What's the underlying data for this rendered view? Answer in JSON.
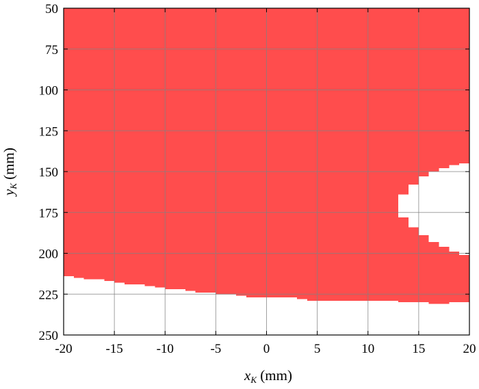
{
  "chart_data": {
    "type": "heatmap",
    "xlim": [
      -20,
      20
    ],
    "ylim": [
      50,
      250
    ],
    "y_direction": "reversed",
    "grid": true,
    "x_ticks": [
      -20,
      -15,
      -10,
      -5,
      0,
      5,
      10,
      15,
      20
    ],
    "y_ticks": [
      50,
      75,
      100,
      125,
      150,
      175,
      200,
      225,
      250
    ],
    "x_tick_labels": [
      "-20",
      "-15",
      "-10",
      "-5",
      "0",
      "5",
      "10",
      "15",
      "20"
    ],
    "y_tick_labels": [
      "50",
      "75",
      "100",
      "125",
      "150",
      "175",
      "200",
      "225",
      "250"
    ],
    "xlabel": {
      "var": "x",
      "sub": "K",
      "unit": " (mm)"
    },
    "ylabel": {
      "var": "y",
      "sub": "K",
      "unit": " (mm)"
    },
    "colors": {
      "region": "#ff4d4d",
      "background": "#ffffff",
      "grid": "#808080"
    },
    "region_lower_boundary": [
      [
        -20,
        214
      ],
      [
        -19,
        215
      ],
      [
        -18,
        216
      ],
      [
        -16,
        217
      ],
      [
        -15,
        218
      ],
      [
        -14,
        219
      ],
      [
        -12,
        220
      ],
      [
        -11,
        221
      ],
      [
        -10,
        222
      ],
      [
        -8,
        223
      ],
      [
        -7,
        224
      ],
      [
        -5,
        225
      ],
      [
        -3,
        226
      ],
      [
        -2,
        227
      ],
      [
        2,
        227
      ],
      [
        3,
        228
      ],
      [
        4,
        229
      ],
      [
        5,
        229
      ],
      [
        10,
        229
      ],
      [
        11,
        229
      ],
      [
        12,
        229
      ],
      [
        13,
        230
      ],
      [
        15,
        230
      ],
      [
        16,
        231
      ],
      [
        17,
        231
      ],
      [
        18,
        230
      ],
      [
        20,
        230
      ]
    ],
    "white_hole": [
      [
        20,
        145
      ],
      [
        19,
        146
      ],
      [
        18,
        148
      ],
      [
        17,
        150
      ],
      [
        16,
        153
      ],
      [
        15,
        158
      ],
      [
        14,
        164
      ],
      [
        13,
        170
      ],
      [
        13,
        178
      ],
      [
        14,
        184
      ],
      [
        15,
        189
      ],
      [
        16,
        193
      ],
      [
        17,
        196
      ],
      [
        18,
        199
      ],
      [
        19,
        201
      ],
      [
        20,
        202
      ]
    ]
  }
}
